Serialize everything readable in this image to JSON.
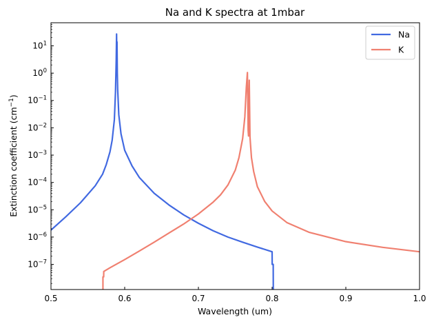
{
  "chart_data": {
    "type": "line",
    "title": "Na and K spectra at 1mbar",
    "xlabel": "Wavelength (um)",
    "ylabel": "Extinction coefficient (cm",
    "ylabel_unit_sup": "−1",
    "ylabel_close": ")",
    "xlim": [
      0.5,
      1.0
    ],
    "ylim": [
      1.2e-08,
      70
    ],
    "yscale": "log",
    "grid": false,
    "legend_position": "top-right",
    "x_ticks": [
      0.5,
      0.6,
      0.7,
      0.8,
      0.9,
      1.0
    ],
    "x_tick_labels": [
      "0.5",
      "0.6",
      "0.7",
      "0.8",
      "0.9",
      "1.0"
    ],
    "y_ticks": [
      {
        "exp": -7,
        "base": "10",
        "sup": "−7"
      },
      {
        "exp": -6,
        "base": "10",
        "sup": "−6"
      },
      {
        "exp": -5,
        "base": "10",
        "sup": "−5"
      },
      {
        "exp": -4,
        "base": "10",
        "sup": "−4"
      },
      {
        "exp": -3,
        "base": "10",
        "sup": "−3"
      },
      {
        "exp": -2,
        "base": "10",
        "sup": "−2"
      },
      {
        "exp": -1,
        "base": "10",
        "sup": "−1"
      },
      {
        "exp": 0,
        "base": "10",
        "sup": "0"
      },
      {
        "exp": 1,
        "base": "10",
        "sup": "1"
      }
    ],
    "series": [
      {
        "name": "Na",
        "color": "#4169e1",
        "points": [
          [
            0.5,
            1.8e-06
          ],
          [
            0.52,
            5.5e-06
          ],
          [
            0.54,
            1.8e-05
          ],
          [
            0.56,
            7.5e-05
          ],
          [
            0.57,
            0.0002
          ],
          [
            0.575,
            0.00045
          ],
          [
            0.58,
            0.0013
          ],
          [
            0.583,
            0.0035
          ],
          [
            0.586,
            0.02
          ],
          [
            0.5875,
            0.2
          ],
          [
            0.5885,
            3.0
          ],
          [
            0.589,
            27
          ],
          [
            0.5893,
            5
          ],
          [
            0.5896,
            14
          ],
          [
            0.59,
            1.0
          ],
          [
            0.5905,
            0.25
          ],
          [
            0.592,
            0.03
          ],
          [
            0.595,
            0.006
          ],
          [
            0.6,
            0.0015
          ],
          [
            0.61,
            0.0004
          ],
          [
            0.62,
            0.00015
          ],
          [
            0.64,
            4e-05
          ],
          [
            0.66,
            1.5e-05
          ],
          [
            0.68,
            6.5e-06
          ],
          [
            0.7,
            3.2e-06
          ],
          [
            0.72,
            1.7e-06
          ],
          [
            0.74,
            1e-06
          ],
          [
            0.76,
            6.5e-07
          ],
          [
            0.78,
            4.3e-07
          ],
          [
            0.8,
            2.9e-07
          ],
          [
            0.8001,
            1e-07
          ],
          [
            0.8015,
            1e-07
          ],
          [
            0.8016,
            1.2e-08
          ]
        ]
      },
      {
        "name": "K",
        "color": "#f08070",
        "points": [
          [
            0.5705,
            1.2e-08
          ],
          [
            0.5705,
            3.5e-08
          ],
          [
            0.5715,
            3.5e-08
          ],
          [
            0.5716,
            5.5e-08
          ],
          [
            0.58,
            7.5e-08
          ],
          [
            0.6,
            1.5e-07
          ],
          [
            0.62,
            3.1e-07
          ],
          [
            0.64,
            6.5e-07
          ],
          [
            0.66,
            1.4e-06
          ],
          [
            0.68,
            3e-06
          ],
          [
            0.7,
            7e-06
          ],
          [
            0.72,
            1.9e-05
          ],
          [
            0.73,
            3.5e-05
          ],
          [
            0.74,
            8e-05
          ],
          [
            0.75,
            0.00028
          ],
          [
            0.755,
            0.0008
          ],
          [
            0.76,
            0.004
          ],
          [
            0.763,
            0.025
          ],
          [
            0.765,
            0.3
          ],
          [
            0.7665,
            1.05
          ],
          [
            0.7675,
            0.008
          ],
          [
            0.768,
            0.005
          ],
          [
            0.769,
            0.55
          ],
          [
            0.77,
            0.0045
          ],
          [
            0.772,
            0.0008
          ],
          [
            0.775,
            0.00025
          ],
          [
            0.78,
            7e-05
          ],
          [
            0.79,
            2e-05
          ],
          [
            0.8,
            9e-06
          ],
          [
            0.82,
            3.4e-06
          ],
          [
            0.85,
            1.5e-06
          ],
          [
            0.9,
            6.8e-07
          ],
          [
            0.95,
            4.2e-07
          ],
          [
            1.0,
            2.9e-07
          ]
        ]
      }
    ]
  }
}
